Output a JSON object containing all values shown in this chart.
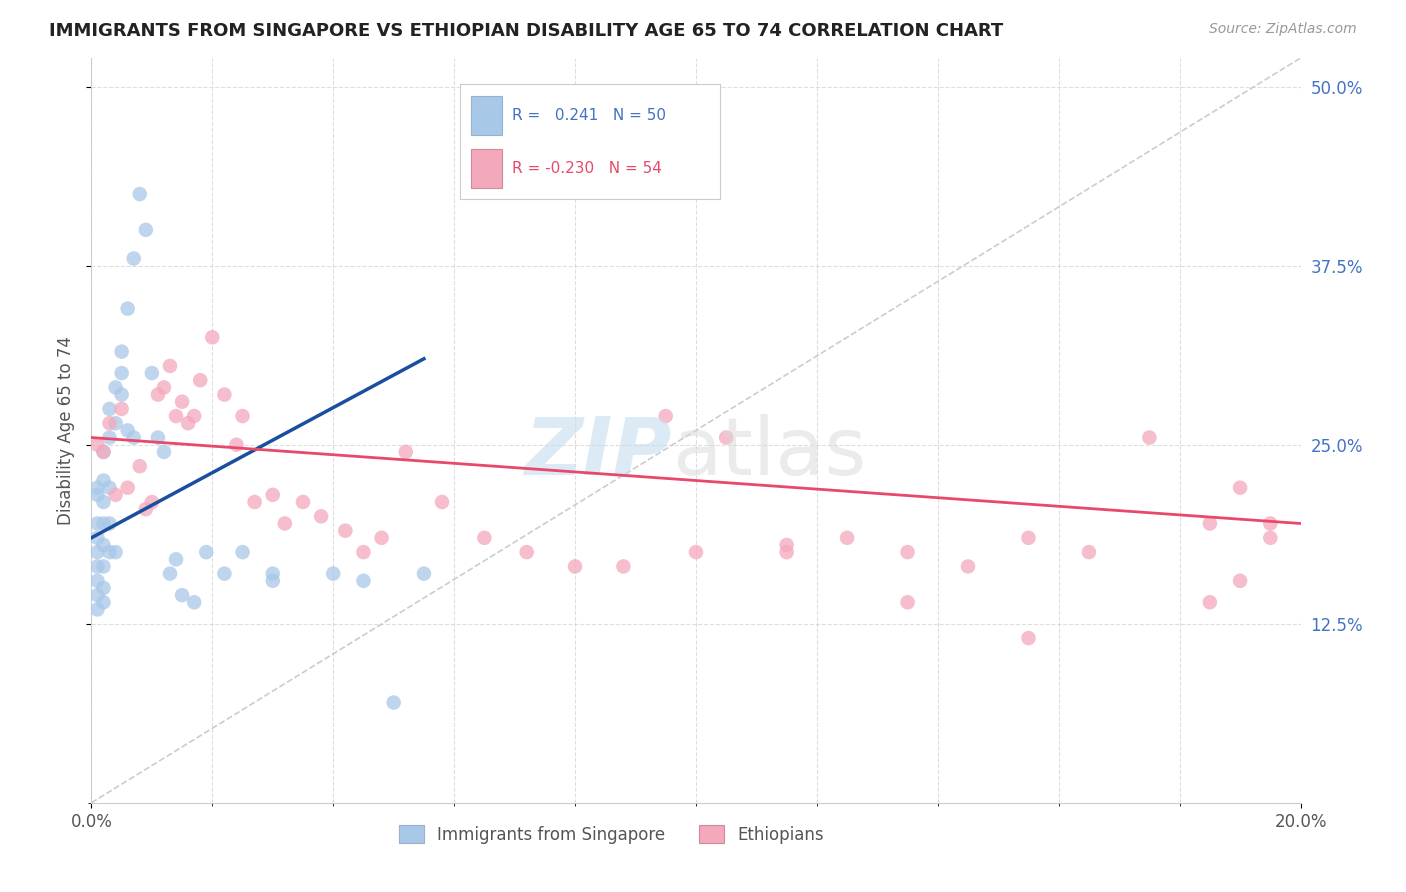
{
  "title": "IMMIGRANTS FROM SINGAPORE VS ETHIOPIAN DISABILITY AGE 65 TO 74 CORRELATION CHART",
  "source": "Source: ZipAtlas.com",
  "ylabel": "Disability Age 65 to 74",
  "right_yticks": [
    "50.0%",
    "37.5%",
    "25.0%",
    "12.5%"
  ],
  "right_ytick_vals": [
    0.5,
    0.375,
    0.25,
    0.125
  ],
  "singapore_color": "#a8c8e8",
  "ethiopian_color": "#f4a8bc",
  "singapore_line_color": "#1a4f9e",
  "ethiopian_line_color": "#e8496a",
  "diagonal_color": "#c0c0c0",
  "xlim": [
    0.0,
    0.2
  ],
  "ylim": [
    0.0,
    0.52
  ],
  "sg_line_x0": 0.0,
  "sg_line_y0": 0.185,
  "sg_line_x1": 0.055,
  "sg_line_y1": 0.31,
  "et_line_x0": 0.0,
  "et_line_y0": 0.255,
  "et_line_x1": 0.2,
  "et_line_y1": 0.195,
  "singapore_x": [
    0.001,
    0.001,
    0.001,
    0.001,
    0.001,
    0.001,
    0.001,
    0.001,
    0.001,
    0.002,
    0.002,
    0.002,
    0.002,
    0.002,
    0.002,
    0.002,
    0.002,
    0.003,
    0.003,
    0.003,
    0.003,
    0.003,
    0.004,
    0.004,
    0.004,
    0.005,
    0.005,
    0.005,
    0.006,
    0.006,
    0.007,
    0.007,
    0.008,
    0.009,
    0.01,
    0.011,
    0.012,
    0.013,
    0.014,
    0.015,
    0.017,
    0.019,
    0.022,
    0.025,
    0.03,
    0.03,
    0.04,
    0.045,
    0.05,
    0.055
  ],
  "singapore_y": [
    0.215,
    0.22,
    0.195,
    0.185,
    0.175,
    0.165,
    0.155,
    0.145,
    0.135,
    0.245,
    0.225,
    0.21,
    0.195,
    0.18,
    0.165,
    0.15,
    0.14,
    0.275,
    0.255,
    0.22,
    0.195,
    0.175,
    0.29,
    0.265,
    0.175,
    0.315,
    0.3,
    0.285,
    0.345,
    0.26,
    0.38,
    0.255,
    0.425,
    0.4,
    0.3,
    0.255,
    0.245,
    0.16,
    0.17,
    0.145,
    0.14,
    0.175,
    0.16,
    0.175,
    0.16,
    0.155,
    0.16,
    0.155,
    0.07,
    0.16
  ],
  "ethiopian_x": [
    0.001,
    0.002,
    0.003,
    0.004,
    0.005,
    0.006,
    0.008,
    0.009,
    0.01,
    0.011,
    0.012,
    0.013,
    0.014,
    0.015,
    0.016,
    0.017,
    0.018,
    0.02,
    0.022,
    0.024,
    0.025,
    0.027,
    0.03,
    0.032,
    0.035,
    0.038,
    0.042,
    0.045,
    0.048,
    0.052,
    0.058,
    0.065,
    0.072,
    0.08,
    0.088,
    0.095,
    0.1,
    0.105,
    0.115,
    0.125,
    0.135,
    0.145,
    0.155,
    0.165,
    0.175,
    0.185,
    0.19,
    0.195,
    0.115,
    0.135,
    0.155,
    0.185,
    0.19,
    0.195
  ],
  "ethiopian_y": [
    0.25,
    0.245,
    0.265,
    0.215,
    0.275,
    0.22,
    0.235,
    0.205,
    0.21,
    0.285,
    0.29,
    0.305,
    0.27,
    0.28,
    0.265,
    0.27,
    0.295,
    0.325,
    0.285,
    0.25,
    0.27,
    0.21,
    0.215,
    0.195,
    0.21,
    0.2,
    0.19,
    0.175,
    0.185,
    0.245,
    0.21,
    0.185,
    0.175,
    0.165,
    0.165,
    0.27,
    0.175,
    0.255,
    0.18,
    0.185,
    0.14,
    0.165,
    0.115,
    0.175,
    0.255,
    0.14,
    0.22,
    0.195,
    0.175,
    0.175,
    0.185,
    0.195,
    0.155,
    0.185
  ]
}
